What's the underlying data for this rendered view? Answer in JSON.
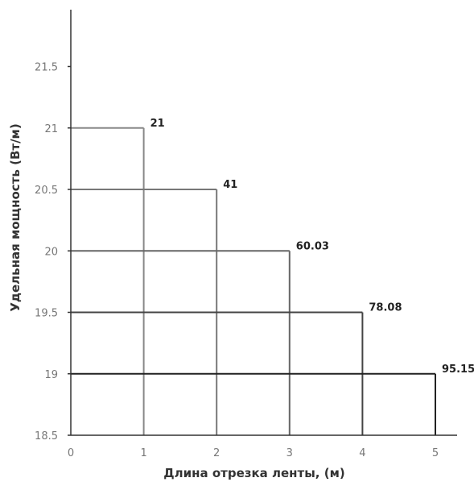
{
  "chart_data": {
    "type": "line",
    "title": "",
    "xlabel": "Длина отрезка ленты, (м)",
    "ylabel": "Удельная мощность (Вт/м)",
    "xlim": [
      0,
      5
    ],
    "ylim": [
      18.5,
      21.9
    ],
    "x_ticks": [
      "0",
      "1",
      "2",
      "3",
      "4",
      "5"
    ],
    "y_ticks": [
      "18.5",
      "19",
      "19.5",
      "20",
      "20.5",
      "21",
      "21.5"
    ],
    "grid": false,
    "steps": [
      {
        "length": 1,
        "power": 21,
        "label": "21",
        "color": "#888888"
      },
      {
        "length": 2,
        "power": 20.5,
        "label": "41",
        "color": "#777777"
      },
      {
        "length": 3,
        "power": 20,
        "label": "60.03",
        "color": "#666666"
      },
      {
        "length": 4,
        "power": 19.5,
        "label": "78.08",
        "color": "#444444"
      },
      {
        "length": 5,
        "power": 19,
        "label": "95.15",
        "color": "#222222"
      }
    ]
  }
}
